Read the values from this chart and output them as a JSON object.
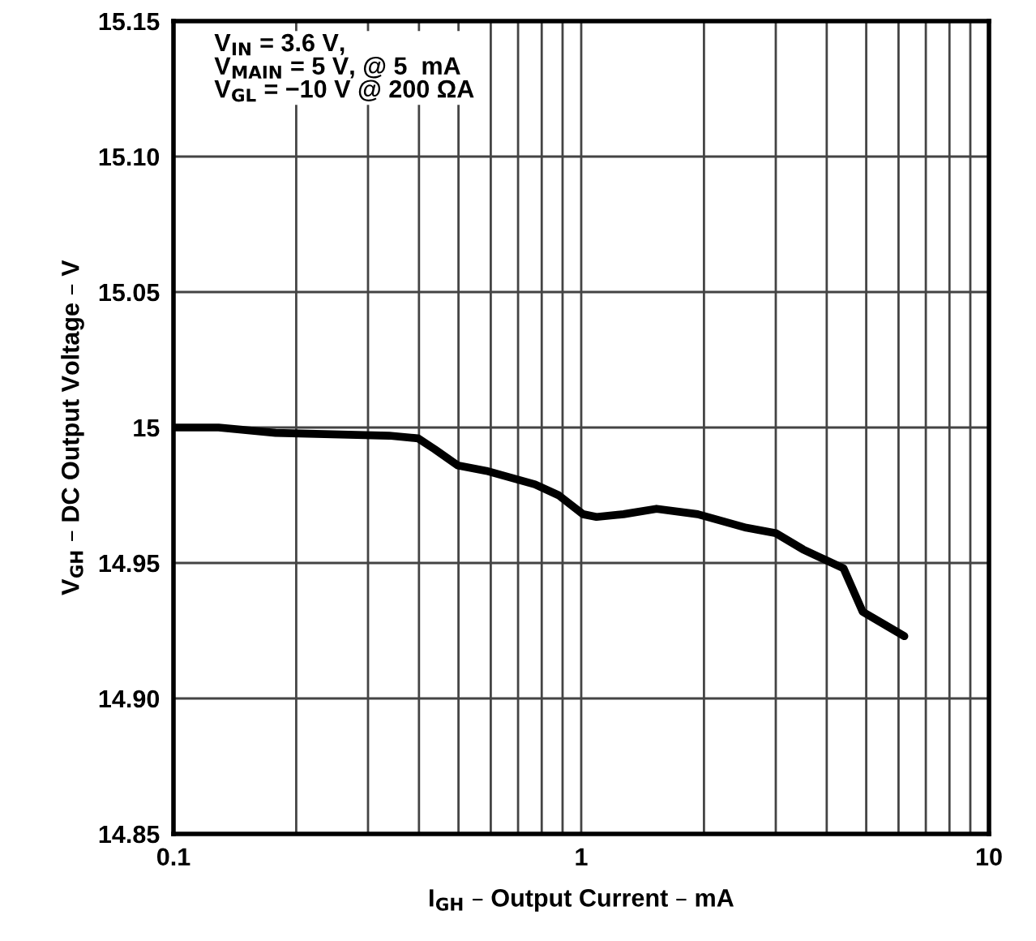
{
  "chart_data": {
    "type": "line",
    "xlabel": "I$_{GH}$ – Output Current – mA",
    "ylabel": "V$_{GH}$ – DC Output Voltage – V",
    "annotations": [
      "V$_{IN}$ = 3.6 V,\nV$_{MAIN}$ = 5 V, @ 5  mA\nV$_{GL}$ = −10 V @ 200 ΩA"
    ],
    "log": "x",
    "xlim": [
      0.1,
      10
    ],
    "ylim": [
      14.85,
      15.15
    ],
    "xticks": [
      0.1,
      {
        "value": 0.2,
        "label": null
      },
      {
        "value": 0.3,
        "label": null
      },
      {
        "value": 0.4,
        "label": null
      },
      {
        "value": 0.5,
        "label": null
      },
      {
        "value": 0.6,
        "label": null
      },
      {
        "value": 0.7,
        "label": null
      },
      {
        "value": 0.8,
        "label": null
      },
      {
        "value": 0.9,
        "label": null
      },
      1,
      {
        "value": 2,
        "label": null
      },
      {
        "value": 3,
        "label": null
      },
      {
        "value": 4,
        "label": null
      },
      {
        "value": 5,
        "label": null
      },
      {
        "value": 6,
        "label": null
      },
      {
        "value": 7,
        "label": null
      },
      {
        "value": 8,
        "label": null
      },
      {
        "value": 9,
        "label": null
      },
      10
    ],
    "yticks": [
      {
        "value": 14.85,
        "label": "14.85"
      },
      {
        "value": 14.9,
        "label": "14.90"
      },
      14.95,
      15,
      15.05,
      {
        "value": 15.1,
        "label": "15.10"
      },
      15.15
    ],
    "grid": true,
    "series": [
      {
        "color": "#000000",
        "x": [
          0.1,
          0.129,
          0.178,
          0.338,
          0.398,
          0.437,
          0.498,
          0.585,
          0.77,
          0.88,
          1.01,
          1.09,
          1.27,
          1.53,
          1.93,
          2.54,
          3.0,
          3.5,
          4.4,
          4.9,
          6.2
        ],
        "values": [
          15.0,
          15.0,
          14.998,
          14.997,
          14.996,
          14.992,
          14.986,
          14.984,
          14.979,
          14.975,
          14.968,
          14.967,
          14.968,
          14.97,
          14.968,
          14.963,
          14.961,
          14.955,
          14.948,
          14.932,
          14.923
        ]
      }
    ]
  }
}
